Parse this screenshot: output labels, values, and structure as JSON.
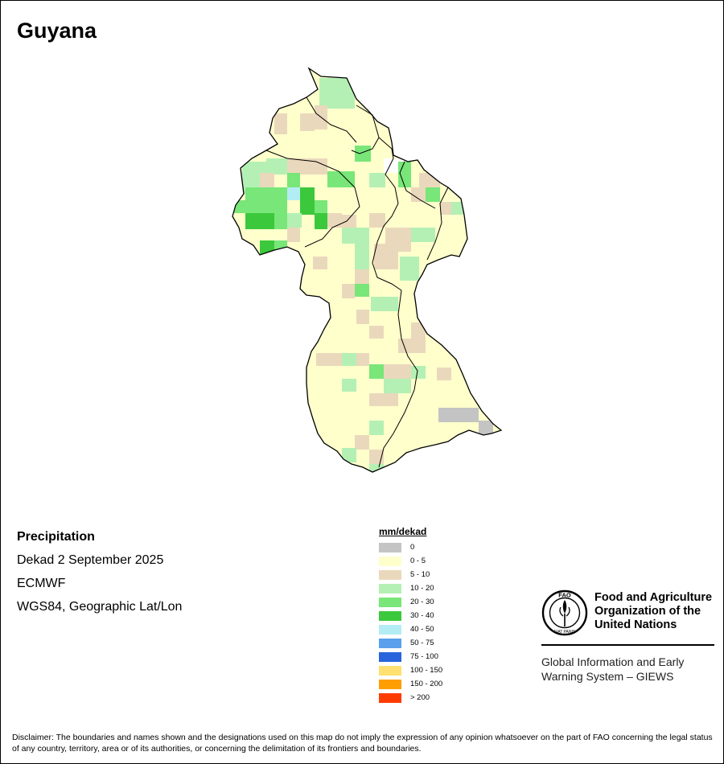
{
  "map": {
    "title": "Guyana",
    "info": {
      "variable": "Precipitation",
      "period": "Dekad 2 September 2025",
      "source": "ECMWF",
      "projection": "WGS84, Geographic Lat/Lon"
    },
    "legend": {
      "title": "mm/dekad",
      "items": [
        {
          "label": "0",
          "color": "#c4c4c4"
        },
        {
          "label": "0 - 5",
          "color": "#ffffcc"
        },
        {
          "label": "5 - 10",
          "color": "#ead8bc"
        },
        {
          "label": "10 - 20",
          "color": "#b4f0b4"
        },
        {
          "label": "20 - 30",
          "color": "#78e678"
        },
        {
          "label": "30 - 40",
          "color": "#3cc83c"
        },
        {
          "label": "40 - 50",
          "color": "#b4ecf4"
        },
        {
          "label": "50 - 75",
          "color": "#5aa0ec"
        },
        {
          "label": "75 - 100",
          "color": "#2864dc"
        },
        {
          "label": "100 - 150",
          "color": "#ffe070"
        },
        {
          "label": "150 - 200",
          "color": "#ff9e00"
        },
        {
          "label": "> 200",
          "color": "#ff3c00"
        }
      ]
    }
  },
  "org": {
    "emblem_text": "FAO",
    "emblem_motto": "FIAT PANIS",
    "name_lines": [
      "Food and Agriculture",
      "Organization of the",
      "United Nations"
    ],
    "system_lines": [
      "Global Information and Early",
      "Warning System – GIEWS"
    ]
  },
  "disclaimer": "Disclaimer: The boundaries and names shown and the designations used on this map do not imply the expression of any opinion whatsoever on the part of FAO concerning the legal status of any country, territory, area or of its authorities, or concerning the delimitation of its frontiers and boundaries."
}
